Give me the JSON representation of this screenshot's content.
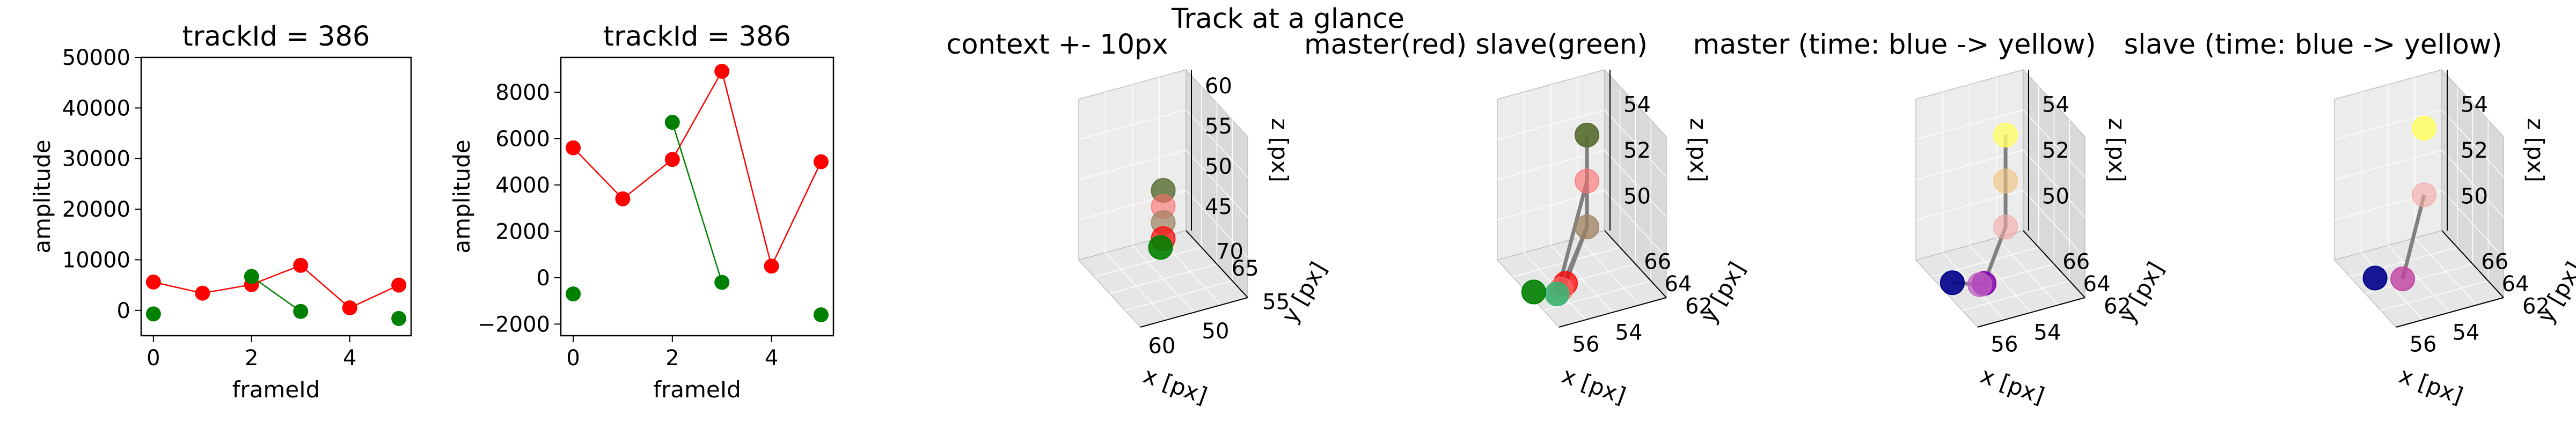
{
  "figure": {
    "suptitle": "Track at a glance"
  },
  "chart_data": [
    {
      "type": "line",
      "title": "trackId = 386",
      "xlabel": "frameId",
      "ylabel": "amplitude",
      "xlim": [
        -0.25,
        5.25
      ],
      "ylim": [
        -5000,
        50000
      ],
      "xticks": [
        "0",
        "2",
        "4"
      ],
      "yticks": [
        "0",
        "10000",
        "20000",
        "30000",
        "40000",
        "50000"
      ],
      "series": [
        {
          "color": "#ff0000",
          "x": [
            0,
            1,
            2,
            3,
            4,
            5
          ],
          "y": [
            5600,
            3400,
            5100,
            8900,
            500,
            5000
          ]
        },
        {
          "color": "#008000",
          "x": [
            0,
            2,
            3,
            5
          ],
          "y": [
            -700,
            6700,
            -200,
            -1600
          ],
          "segments": [
            [
              1,
              2
            ]
          ]
        }
      ]
    },
    {
      "type": "line",
      "title": "trackId = 386",
      "xlabel": "frameId",
      "ylabel": "amplitude",
      "xlim": [
        -0.25,
        5.25
      ],
      "ylim": [
        -2500,
        9500
      ],
      "xticks": [
        "0",
        "2",
        "4"
      ],
      "yticks": [
        "−2000",
        "0",
        "2000",
        "4000",
        "6000",
        "8000"
      ],
      "series": [
        {
          "color": "#ff0000",
          "x": [
            0,
            1,
            2,
            3,
            4,
            5
          ],
          "y": [
            5600,
            3400,
            5100,
            8900,
            500,
            5000
          ]
        },
        {
          "color": "#008000",
          "x": [
            0,
            2,
            3,
            5
          ],
          "y": [
            -700,
            6700,
            -200,
            -1600
          ],
          "segments": [
            [
              1,
              2
            ]
          ]
        }
      ]
    },
    {
      "type": "scatter",
      "title": "context +- 10px",
      "xlabel": "x [px]",
      "ylabel": "y [px]",
      "zlabel": "z [px]",
      "xticks": [
        "50",
        "60"
      ],
      "yticks": [
        "55",
        "65",
        "70"
      ],
      "zticks": [
        "45",
        "50",
        "55",
        "60"
      ],
      "xlim": [
        45,
        65
      ],
      "ylim": [
        52,
        72
      ],
      "zlim": [
        42,
        62
      ],
      "points": [
        {
          "x": 55,
          "y": 62,
          "z": 53,
          "color": "#556b2f",
          "alpha": 0.8
        },
        {
          "x": 55,
          "y": 62,
          "z": 51,
          "color": "#ff6b6b",
          "alpha": 0.6
        },
        {
          "x": 55,
          "y": 62,
          "z": 49,
          "color": "#a08060",
          "alpha": 0.7
        },
        {
          "x": 55,
          "y": 62,
          "z": 47,
          "color": "#ff0000",
          "alpha": 0.7
        },
        {
          "x": 55.5,
          "y": 62,
          "z": 46,
          "color": "#008000",
          "alpha": 0.9
        }
      ]
    },
    {
      "type": "scatter",
      "title": "master(red) slave(green)",
      "xlabel": "x [px]",
      "ylabel": "y [px]",
      "zlabel": "z [px]",
      "xticks": [
        "54",
        "56"
      ],
      "yticks": [
        "62",
        "64",
        "66"
      ],
      "zticks": [
        "50",
        "52",
        "54"
      ],
      "xlim": [
        52.5,
        57.5
      ],
      "ylim": [
        61.5,
        67.5
      ],
      "zlim": [
        48.5,
        55.5
      ],
      "points": [
        {
          "x": 55,
          "y": 64,
          "z": 55,
          "color": "#556b2f",
          "alpha": 0.9
        },
        {
          "x": 55,
          "y": 64,
          "z": 53,
          "color": "#ff6b6b",
          "alpha": 0.6
        },
        {
          "x": 55,
          "y": 64,
          "z": 51,
          "color": "#a08060",
          "alpha": 0.75
        },
        {
          "x": 56,
          "y": 64,
          "z": 48.8,
          "color": "#ff0000",
          "alpha": 0.75
        },
        {
          "x": 56.2,
          "y": 64,
          "z": 48.6,
          "color": "#ff6b6b",
          "alpha": 0.6
        },
        {
          "x": 56.2,
          "y": 64.4,
          "z": 48.2,
          "color": "#3cb371",
          "alpha": 0.9
        },
        {
          "x": 57,
          "y": 65,
          "z": 48.2,
          "color": "#008000",
          "alpha": 0.9
        }
      ],
      "lines": [
        [
          0,
          1,
          2,
          3
        ],
        [
          2,
          4
        ],
        [
          1,
          5
        ]
      ]
    },
    {
      "type": "scatter",
      "title": "master (time: blue -> yellow)",
      "xlabel": "x [px]",
      "ylabel": "y [px]",
      "zlabel": "z [px]",
      "xticks": [
        "54",
        "56"
      ],
      "yticks": [
        "62",
        "64",
        "66"
      ],
      "zticks": [
        "50",
        "52",
        "54"
      ],
      "xlim": [
        52.5,
        57.5
      ],
      "ylim": [
        61.5,
        67.5
      ],
      "zlim": [
        48.5,
        55.5
      ],
      "points": [
        {
          "x": 55,
          "y": 64,
          "z": 55,
          "color": "#ffff66",
          "alpha": 0.8
        },
        {
          "x": 55,
          "y": 64,
          "z": 53,
          "color": "#f4c27a",
          "alpha": 0.6
        },
        {
          "x": 55,
          "y": 64,
          "z": 51,
          "color": "#f4a6a6",
          "alpha": 0.6
        },
        {
          "x": 56,
          "y": 64,
          "z": 48.8,
          "color": "#8000aa",
          "alpha": 0.85
        },
        {
          "x": 56.2,
          "y": 64,
          "z": 48.8,
          "color": "#c060c0",
          "alpha": 0.75
        },
        {
          "x": 57,
          "y": 65,
          "z": 48.6,
          "color": "#00008b",
          "alpha": 0.9
        }
      ],
      "lines": [
        [
          0,
          1,
          2,
          3
        ],
        [
          3,
          4,
          5
        ]
      ]
    },
    {
      "type": "scatter",
      "title": "slave (time: blue -> yellow)",
      "xlabel": "x [px]",
      "ylabel": "y [px]",
      "zlabel": "z [px]",
      "xticks": [
        "54",
        "56"
      ],
      "yticks": [
        "62",
        "64",
        "66"
      ],
      "zticks": [
        "50",
        "52",
        "54"
      ],
      "xlim": [
        52.5,
        57.5
      ],
      "ylim": [
        61.5,
        67.5
      ],
      "zlim": [
        48.5,
        55.5
      ],
      "points": [
        {
          "x": 55,
          "y": 64,
          "z": 55.3,
          "color": "#ffff66",
          "alpha": 0.85
        },
        {
          "x": 55,
          "y": 64,
          "z": 52.4,
          "color": "#f4a6a6",
          "alpha": 0.6
        },
        {
          "x": 56,
          "y": 64,
          "z": 49,
          "color": "#c040a0",
          "alpha": 0.8
        },
        {
          "x": 57,
          "y": 64.6,
          "z": 49,
          "color": "#00008b",
          "alpha": 0.9
        }
      ],
      "lines": [
        [
          1,
          2
        ]
      ]
    }
  ]
}
